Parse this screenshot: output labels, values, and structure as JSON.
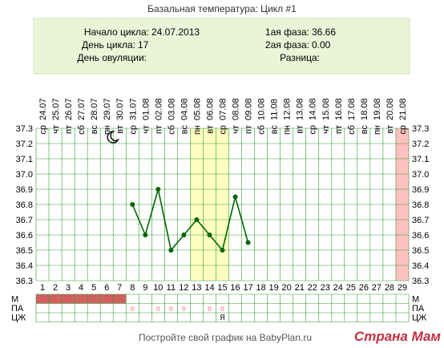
{
  "title": "Базальная температура: Цикл #1",
  "info": {
    "cycle_start_label": "Начало цикла:",
    "cycle_start_value": "24.07.2013",
    "cycle_day_label": "День цикла:",
    "cycle_day_value": "17",
    "ovulation_day_label": "День овуляции:",
    "ovulation_day_value": "",
    "phase1_label": "1ая фаза:",
    "phase1_value": "36.66",
    "phase2_label": "2ая фаза:",
    "phase2_value": "0.00",
    "difference_label": "Разница:",
    "difference_value": ""
  },
  "footer": "Постройте свой график на BabyPlan.ru",
  "watermark": "Страна Мам",
  "moon_icon": "crescent-moon-icon",
  "colors": {
    "line": "#006600",
    "highlight_band": "#ffffc0",
    "today_band": "#ffc0c0",
    "menstruation": "#d06060",
    "grid": "#339933",
    "info_bg": "#eaf5d8",
    "marker": "#ff6666",
    "watermark": "#c03040"
  },
  "chart_data": {
    "type": "line",
    "title": "Базальная температура: Цикл #1",
    "dates": [
      "24.07",
      "25.07",
      "26.07",
      "27.07",
      "28.07",
      "29.07",
      "30.07",
      "31.07",
      "01.08",
      "02.08",
      "03.08",
      "04.08",
      "05.08",
      "06.08",
      "07.08",
      "08.08",
      "09.08",
      "10.08",
      "11.08",
      "12.08",
      "13.08",
      "14.08",
      "15.08",
      "16.08",
      "17.08",
      "18.08",
      "19.08",
      "20.08",
      "21.08"
    ],
    "weekdays": [
      "ср",
      "чт",
      "пт",
      "сб",
      "вс",
      "пн",
      "вт",
      "ср",
      "чт",
      "пт",
      "сб",
      "вс",
      "пн",
      "вт",
      "ср",
      "чт",
      "пт",
      "сб",
      "вс",
      "пн",
      "вт",
      "ср",
      "чт",
      "пт",
      "сб",
      "вс",
      "пн",
      "вт",
      "ср"
    ],
    "days": [
      "1",
      "2",
      "3",
      "4",
      "5",
      "6",
      "7",
      "8",
      "9",
      "10",
      "11",
      "12",
      "13",
      "14",
      "15",
      "16",
      "17",
      "18",
      "19",
      "20",
      "21",
      "22",
      "23",
      "24",
      "25",
      "26",
      "27",
      "28",
      "29"
    ],
    "y_ticks": [
      "37.3",
      "37.2",
      "37.1",
      "37.0",
      "36.9",
      "36.8",
      "36.7",
      "36.6",
      "36.5",
      "36.4",
      "36.3"
    ],
    "ylim": [
      36.3,
      37.3
    ],
    "series": [
      {
        "values": [
          null,
          null,
          null,
          null,
          null,
          null,
          null,
          36.8,
          36.6,
          36.9,
          36.5,
          36.6,
          36.7,
          36.6,
          36.5,
          36.85,
          36.55,
          null,
          null,
          null,
          null,
          null,
          null,
          null,
          null,
          null,
          null,
          null,
          null
        ]
      }
    ],
    "highlight_days": [
      13,
      15
    ],
    "today_day": 29,
    "moon_day": 6,
    "grid": true,
    "bottom_rows": {
      "labels": [
        "М",
        "ПА",
        "ЦЖ"
      ],
      "menstruation_days": [
        1,
        2,
        3,
        4,
        5,
        6,
        7
      ],
      "pa_marks": [
        {
          "day": 8,
          "mark": "o"
        },
        {
          "day": 10,
          "mark": "o"
        },
        {
          "day": 11,
          "mark": "o"
        },
        {
          "day": 12,
          "mark": "o"
        },
        {
          "day": 14,
          "mark": "o"
        },
        {
          "day": 15,
          "mark": "o"
        }
      ],
      "cz_marks": [
        {
          "day": 15,
          "mark": "Я"
        }
      ]
    }
  }
}
